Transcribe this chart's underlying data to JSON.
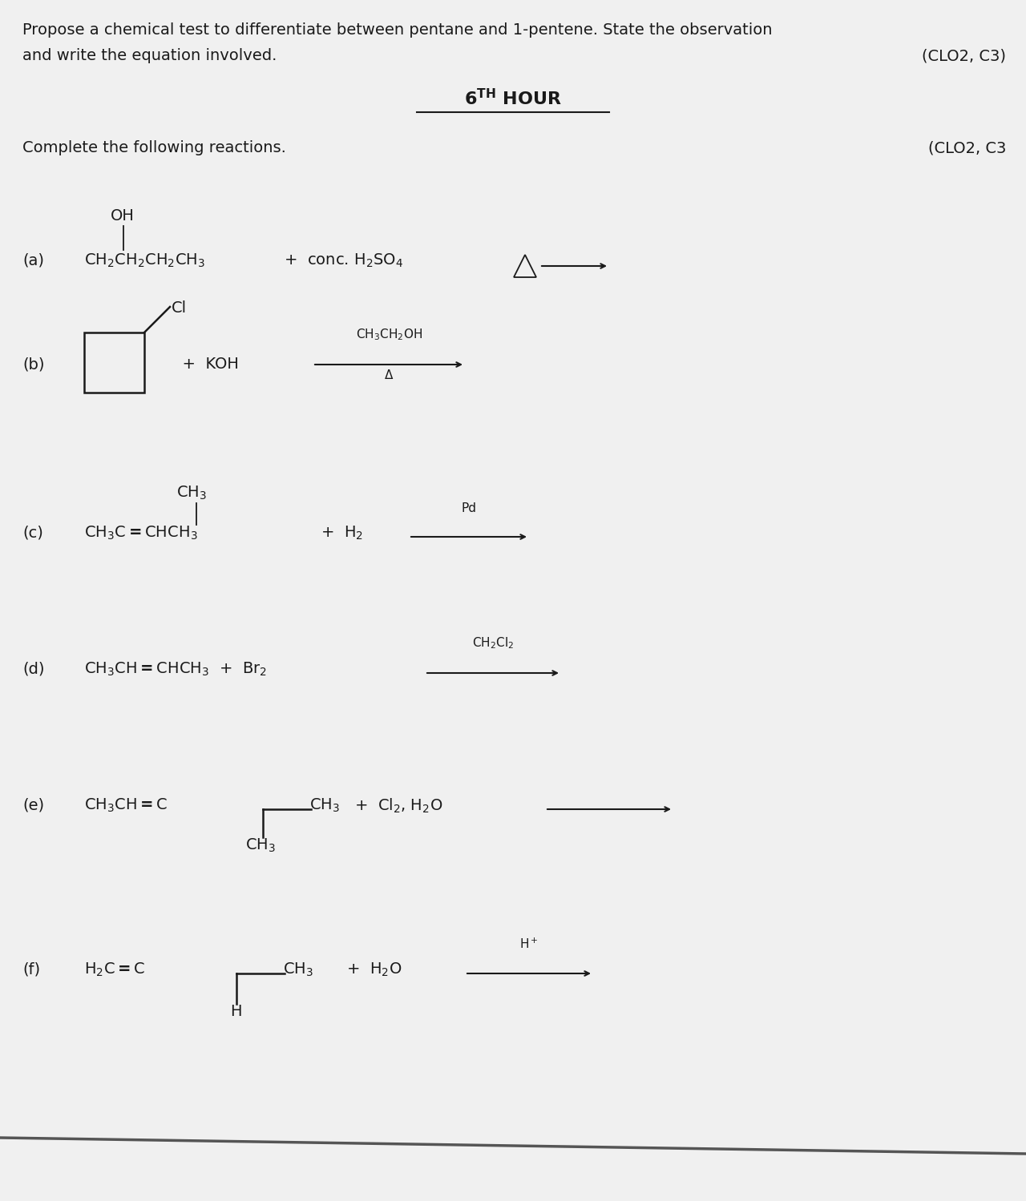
{
  "bg_color": "#f0f0f0",
  "text_color": "#1a1a1a",
  "header_text1": "Propose a chemical test to differentiate between pentane and 1-pentene. State the observation",
  "header_text2": "and write the equation involved.",
  "header_clo": "(CLO2, C3)",
  "subtitle_clo": "(CLO2, C3",
  "font_size_header": 14,
  "font_size_title": 16,
  "font_size_body": 14,
  "font_size_small": 11
}
